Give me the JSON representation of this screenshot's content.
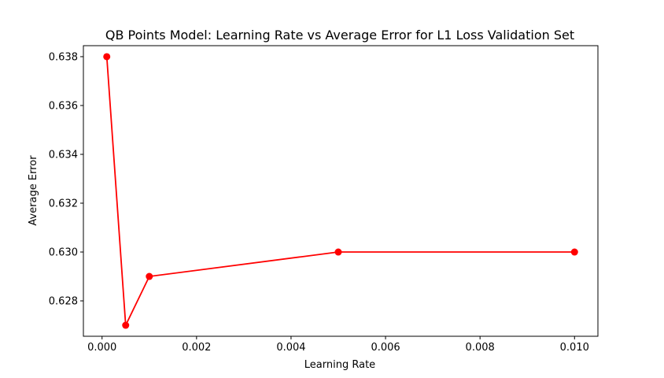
{
  "chart_data": {
    "type": "line",
    "title": "QB Points Model: Learning Rate vs Average Error for L1 Loss Validation Set",
    "xlabel": "Learning Rate",
    "ylabel": "Average Error",
    "xlim": [
      -0.000395,
      0.010495
    ],
    "ylim": [
      0.62655,
      0.63845
    ],
    "x_ticks": [
      0.0,
      0.002,
      0.004,
      0.006,
      0.008,
      0.01
    ],
    "x_tick_labels": [
      "0.000",
      "0.002",
      "0.004",
      "0.006",
      "0.008",
      "0.010"
    ],
    "y_ticks": [
      0.628,
      0.63,
      0.632,
      0.634,
      0.636,
      0.638
    ],
    "y_tick_labels": [
      "0.628",
      "0.630",
      "0.632",
      "0.634",
      "0.636",
      "0.638"
    ],
    "grid": false,
    "series": [
      {
        "color": "#ff0000",
        "marker": "circle",
        "x": [
          0.0001,
          0.0005,
          0.001,
          0.005,
          0.01
        ],
        "y": [
          0.638,
          0.627,
          0.629,
          0.63,
          0.63
        ]
      }
    ]
  }
}
